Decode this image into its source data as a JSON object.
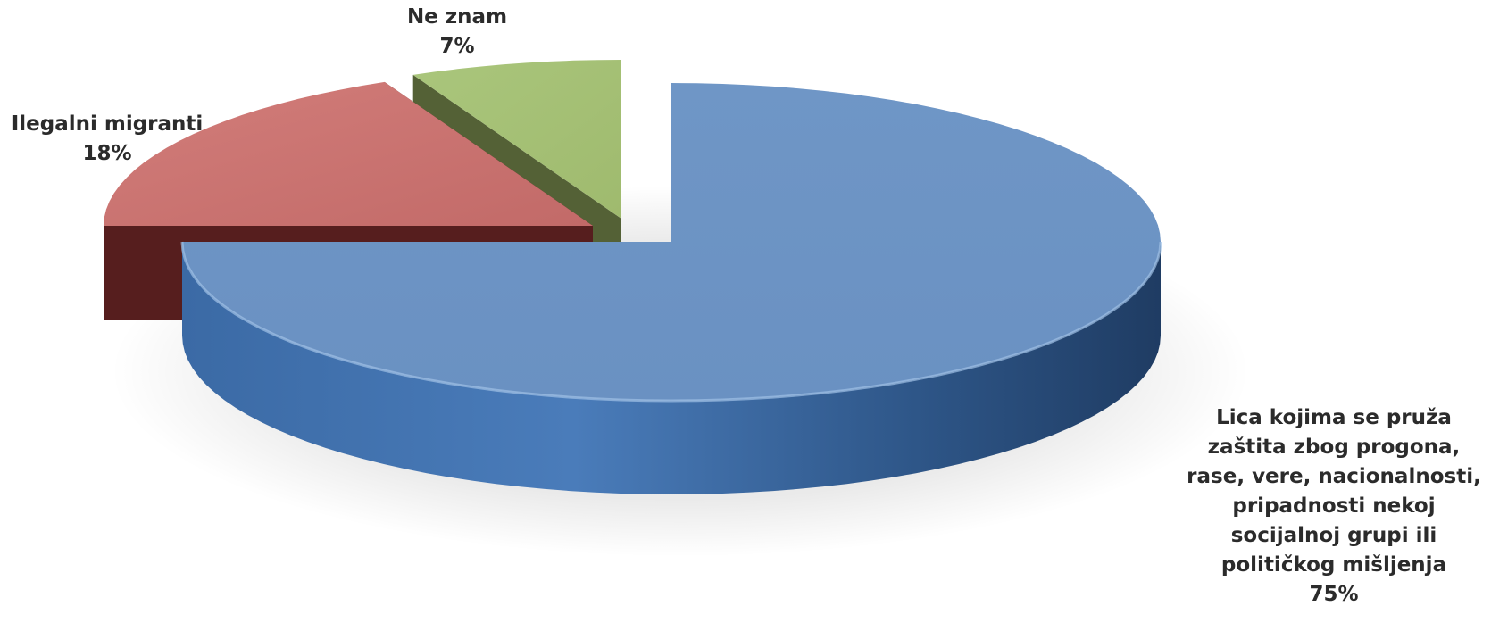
{
  "chart_data": {
    "type": "pie",
    "title": "",
    "slices": [
      {
        "label_lines": [
          "Lica kojima se pruža",
          "zaštita zbog progona,",
          "rase, vere, nacionalnosti,",
          "pripadnosti nekoj",
          "socijalnoj grupi ili",
          "političkog mišljenja"
        ],
        "value": 75,
        "value_label": "75%",
        "color": "#6c94c4"
      },
      {
        "label_lines": [
          "Ilegalni migranti"
        ],
        "value": 18,
        "value_label": "18%",
        "color": "#c46c6a"
      },
      {
        "label_lines": [
          "Ne znam"
        ],
        "value": 7,
        "value_label": "7%",
        "color": "#a3be72"
      }
    ],
    "legend": "none",
    "style": "3d-exploded"
  }
}
